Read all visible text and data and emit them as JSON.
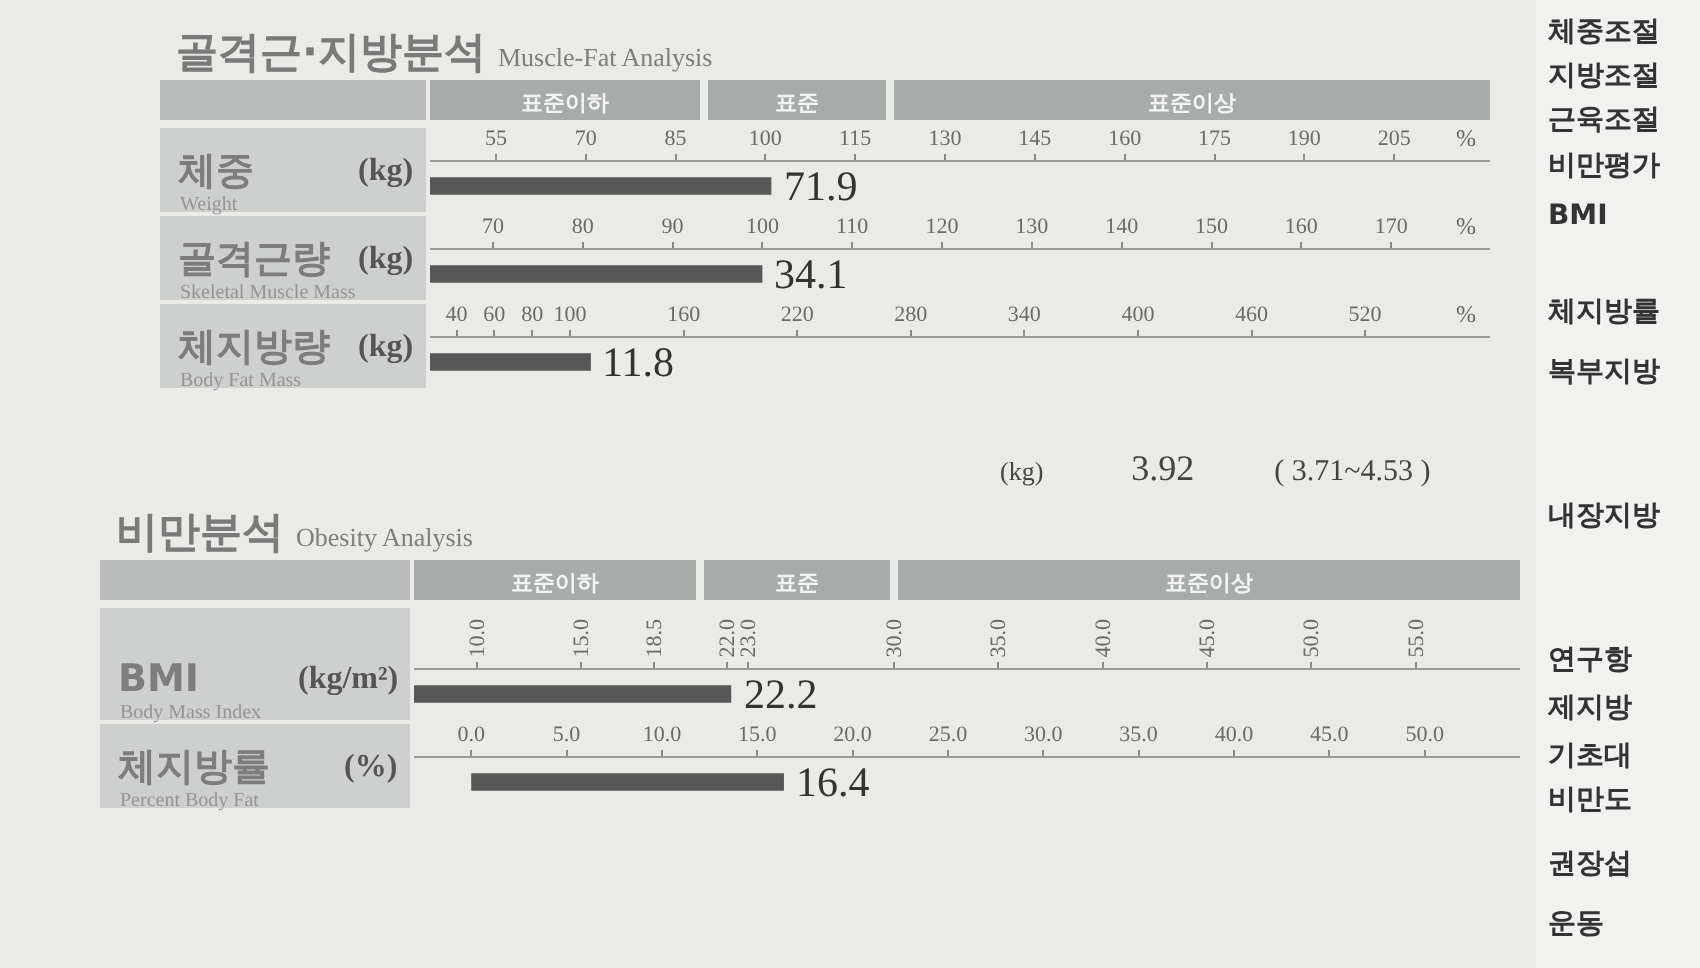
{
  "chart_data": [
    {
      "type": "bar",
      "orientation": "horizontal",
      "title": "골격근·지방분석",
      "subtitle": "Muscle-Fat Analysis",
      "categories": [
        "체중"
      ],
      "ylabel": "(kg)",
      "xlabel": "%",
      "values": [
        101
      ],
      "color": "#575757",
      "xlim": [
        44,
        221
      ],
      "xticks": [
        55,
        70,
        85,
        100,
        115,
        130,
        145,
        160,
        175,
        190,
        205
      ],
      "annotations": [
        "Weight",
        "표준이하",
        "표준",
        "표준이상",
        "71.9"
      ]
    },
    {
      "type": "bar",
      "orientation": "horizontal",
      "categories": [
        "골격근량"
      ],
      "ylabel": "(kg)",
      "xlabel": "%",
      "values": [
        100
      ],
      "color": "#575757",
      "xlim": [
        63,
        181
      ],
      "xticks": [
        70,
        80,
        90,
        100,
        110,
        120,
        130,
        140,
        150,
        160,
        170
      ],
      "annotations": [
        "Skeletal Muscle Mass",
        "34.1"
      ]
    },
    {
      "type": "bar",
      "orientation": "horizontal",
      "categories": [
        "체지방량"
      ],
      "ylabel": "(kg)",
      "xlabel": "%",
      "values": [
        111
      ],
      "color": "#575757",
      "xlim": [
        26,
        586
      ],
      "xticks": [
        40,
        60,
        80,
        100,
        160,
        220,
        280,
        340,
        400,
        460,
        520
      ],
      "annotations": [
        "Body Fat Mass",
        "11.8"
      ]
    },
    {
      "type": "bar",
      "orientation": "horizontal",
      "title": "비만분석",
      "subtitle": "Obesity Analysis",
      "categories": [
        "BMI"
      ],
      "ylabel": "(kg/m²)",
      "values": [
        22.2
      ],
      "data_labels": true,
      "color": "#575757",
      "xlim": [
        7,
        60
      ],
      "xticks": [
        {
          "value": 10,
          "label": "10.0"
        },
        {
          "value": 15,
          "label": "15.0"
        },
        {
          "value": 18.5,
          "label": "18.5"
        },
        {
          "value": 22,
          "label": "22.0"
        },
        {
          "value": 23,
          "label": "23.0"
        },
        {
          "value": 30,
          "label": "30.0"
        },
        {
          "value": 35,
          "label": "35.0"
        },
        {
          "value": 40,
          "label": "40.0"
        },
        {
          "value": 45,
          "label": "45.0"
        },
        {
          "value": 50,
          "label": "50.0"
        },
        {
          "value": 55,
          "label": "55.0"
        }
      ],
      "annotations": [
        "Body Mass Index",
        "표준이하",
        "표준",
        "표준이상"
      ]
    },
    {
      "type": "bar",
      "orientation": "horizontal",
      "categories": [
        "체지방률"
      ],
      "ylabel": "(%)",
      "values": [
        16.4
      ],
      "data_labels": true,
      "color": "#575757",
      "xlim": [
        -3,
        55
      ],
      "xticks": [
        {
          "value": 0,
          "label": "0.0"
        },
        {
          "value": 5,
          "label": "5.0"
        },
        {
          "value": 10,
          "label": "10.0"
        },
        {
          "value": 15,
          "label": "15.0"
        },
        {
          "value": 20,
          "label": "20.0"
        },
        {
          "value": 25,
          "label": "25.0"
        },
        {
          "value": 30,
          "label": "30.0"
        },
        {
          "value": 35,
          "label": "35.0"
        },
        {
          "value": 40,
          "label": "40.0"
        },
        {
          "value": 45,
          "label": "45.0"
        },
        {
          "value": 50,
          "label": "50.0"
        }
      ],
      "annotations": [
        "Percent Body Fat"
      ]
    },
    {
      "type": "other",
      "annotations": [
        "(kg)",
        "3.92",
        "( 3.71~4.53 )"
      ]
    },
    {
      "type": "other",
      "annotations": [
        "체중조절",
        "지방조절",
        "근육조절",
        "비만평가",
        "BMI",
        "체지방률",
        "복부지방",
        "내장지방",
        "연구항",
        "제지방",
        "기초대",
        "비만도",
        "권장섭",
        "운동"
      ]
    }
  ]
}
